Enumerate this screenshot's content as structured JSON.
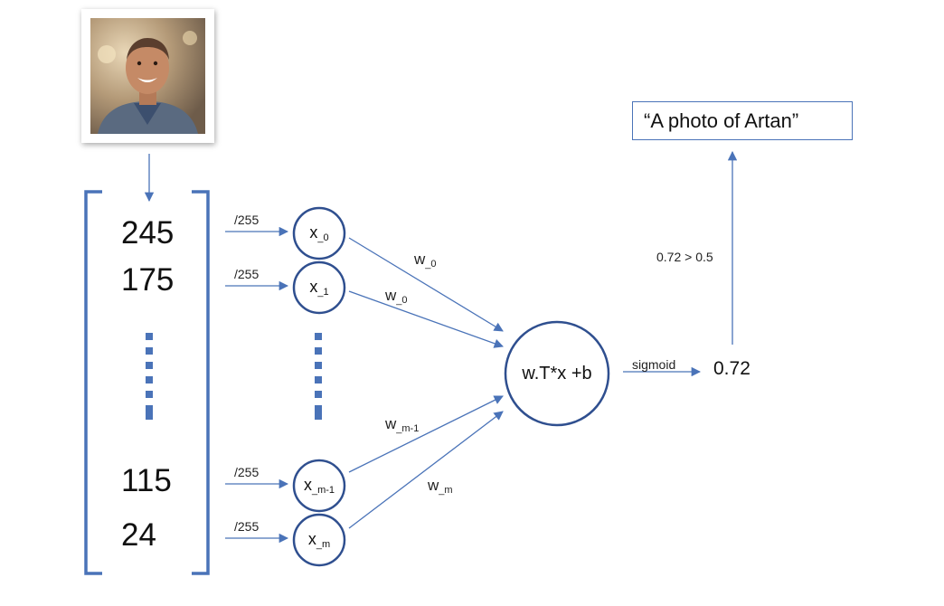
{
  "diagram": {
    "input_vector": [
      "245",
      "175",
      "115",
      "24"
    ],
    "normalize_label": "/255",
    "inputs": [
      {
        "base": "x",
        "sub": "_0"
      },
      {
        "base": "x",
        "sub": "_1"
      },
      {
        "base": "x",
        "sub": "_m-1"
      },
      {
        "base": "x",
        "sub": "_m"
      }
    ],
    "weights": [
      {
        "base": "w",
        "sub": "_0"
      },
      {
        "base": "w",
        "sub": "_0"
      },
      {
        "base": "w",
        "sub": "_m-1"
      },
      {
        "base": "w",
        "sub": "_m"
      }
    ],
    "neuron_formula": "w.T*x +b",
    "activation_label": "sigmoid",
    "output_value": "0.72",
    "threshold_label": "0.72 > 0.5",
    "result_caption": "“A photo of Artan”",
    "colors": {
      "line": "#4a73b8",
      "bracket": "#4a73b8",
      "circle": "#2f4f8f"
    }
  }
}
